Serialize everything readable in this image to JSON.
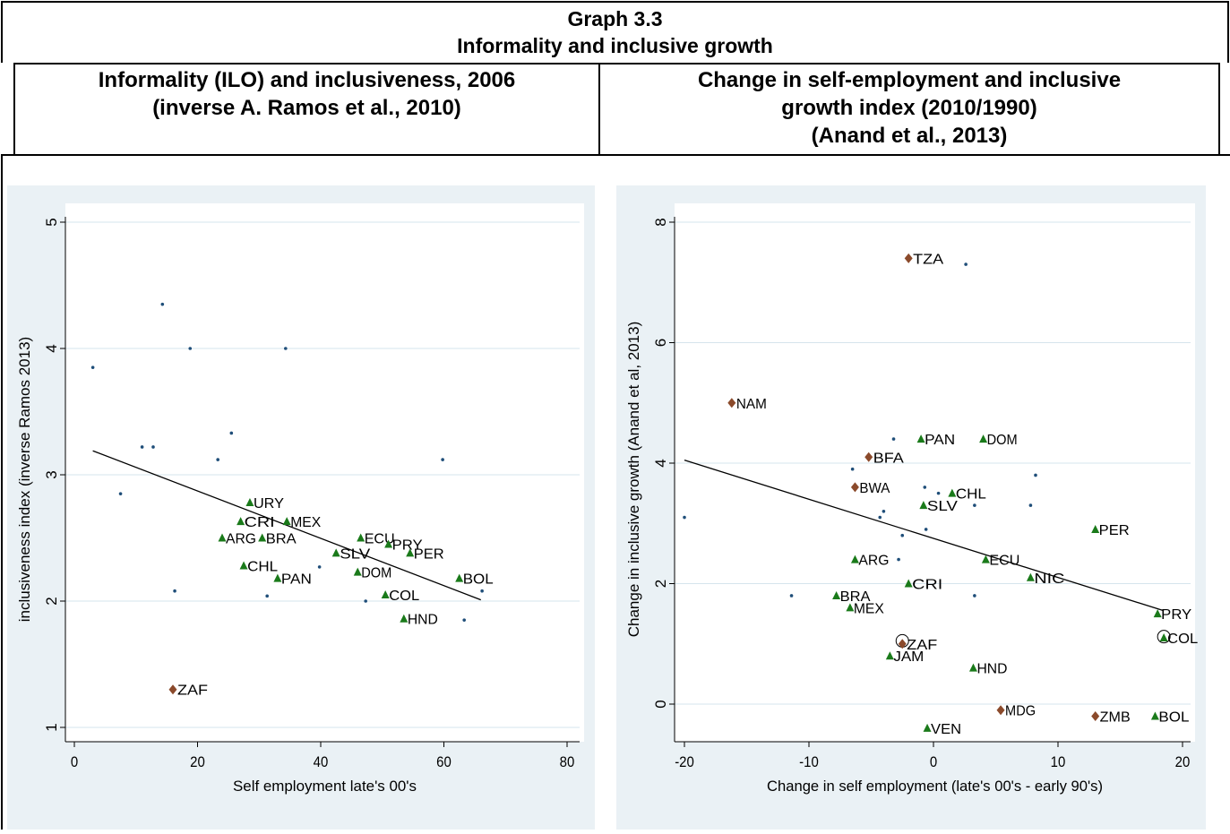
{
  "header": {
    "title_line1": "Graph 3.3",
    "title_line2": "Informality and inclusive growth",
    "left_line1": "Informality (ILO) and inclusiveness, 2006",
    "left_line2": "(inverse A. Ramos et al., 2010)",
    "right_line1": "Change in self-employment and inclusive",
    "right_line2": "growth index (2010/1990)",
    "right_line3": "(Anand et al., 2013)"
  },
  "colors": {
    "triangle": "#1a7a1a",
    "diamond": "#8b4a2b",
    "dot": "#1f4e79",
    "grid": "#d6e4ec",
    "panel_bg": "#eaf1f5"
  },
  "chart_data": [
    {
      "type": "scatter",
      "xlabel": "Self employment late's 00's",
      "ylabel": "inclusiveness index (inverse Ramos 2013)",
      "xlim": [
        0,
        80
      ],
      "ylim": [
        1,
        5
      ],
      "xticks": [
        0,
        20,
        40,
        60,
        80
      ],
      "yticks": [
        1,
        2,
        3,
        4,
        5
      ],
      "fit_line": [
        [
          3,
          3.19
        ],
        [
          66,
          2.01
        ]
      ],
      "triangles": [
        {
          "label": "URY",
          "x": 28.5,
          "y": 2.78
        },
        {
          "label": "CRI",
          "x": 27,
          "y": 2.63
        },
        {
          "label": "MEX",
          "x": 34.5,
          "y": 2.63
        },
        {
          "label": "ARG",
          "x": 24,
          "y": 2.5
        },
        {
          "label": "BRA",
          "x": 30.5,
          "y": 2.5
        },
        {
          "label": "ECU",
          "x": 46.5,
          "y": 2.5
        },
        {
          "label": "PRY",
          "x": 51,
          "y": 2.45
        },
        {
          "label": "SLV",
          "x": 42.5,
          "y": 2.38
        },
        {
          "label": "PER",
          "x": 54.5,
          "y": 2.38
        },
        {
          "label": "CHL",
          "x": 27.5,
          "y": 2.28
        },
        {
          "label": "DOM",
          "x": 46,
          "y": 2.23
        },
        {
          "label": "PAN",
          "x": 33,
          "y": 2.18
        },
        {
          "label": "BOL",
          "x": 62.5,
          "y": 2.18
        },
        {
          "label": "COL",
          "x": 50.5,
          "y": 2.05
        },
        {
          "label": "HND",
          "x": 53.5,
          "y": 1.86
        }
      ],
      "diamonds": [
        {
          "label": "ZAF",
          "x": 16,
          "y": 1.3
        }
      ],
      "dots": [
        {
          "x": 3,
          "y": 3.85
        },
        {
          "x": 7.5,
          "y": 2.85
        },
        {
          "x": 11,
          "y": 3.22
        },
        {
          "x": 12.8,
          "y": 3.22
        },
        {
          "x": 14.3,
          "y": 4.35
        },
        {
          "x": 16.3,
          "y": 2.08
        },
        {
          "x": 18.8,
          "y": 4.0
        },
        {
          "x": 23.3,
          "y": 3.12
        },
        {
          "x": 25.5,
          "y": 3.33
        },
        {
          "x": 31.3,
          "y": 2.04
        },
        {
          "x": 34.3,
          "y": 4.0
        },
        {
          "x": 39.8,
          "y": 2.27
        },
        {
          "x": 47.3,
          "y": 2.0
        },
        {
          "x": 59.8,
          "y": 3.12
        },
        {
          "x": 63.3,
          "y": 1.85
        },
        {
          "x": 66.2,
          "y": 2.08
        }
      ]
    },
    {
      "type": "scatter",
      "xlabel": "Change in self employment (late's 00's - early 90's)",
      "ylabel": "Change in inclusive growth (Anand et al, 2013)",
      "xlim": [
        -20,
        20
      ],
      "ylim": [
        0,
        8
      ],
      "xticks": [
        -20,
        -10,
        0,
        10,
        20
      ],
      "yticks": [
        0,
        2,
        4,
        6,
        8
      ],
      "fit_line": [
        [
          -20,
          4.05
        ],
        [
          18.5,
          1.55
        ]
      ],
      "triangles": [
        {
          "label": "PAN",
          "x": -1,
          "y": 4.4
        },
        {
          "label": "DOM",
          "x": 4,
          "y": 4.4
        },
        {
          "label": "CHL",
          "x": 1.5,
          "y": 3.5
        },
        {
          "label": "SLV",
          "x": -0.8,
          "y": 3.3
        },
        {
          "label": "PER",
          "x": 13,
          "y": 2.9
        },
        {
          "label": "ARG",
          "x": -6.3,
          "y": 2.4
        },
        {
          "label": "ECU",
          "x": 4.2,
          "y": 2.4
        },
        {
          "label": "NIC",
          "x": 7.8,
          "y": 2.1
        },
        {
          "label": "CRI",
          "x": -2,
          "y": 2.0
        },
        {
          "label": "BRA",
          "x": -7.8,
          "y": 1.8
        },
        {
          "label": "MEX",
          "x": -6.7,
          "y": 1.6
        },
        {
          "label": "PRY",
          "x": 18,
          "y": 1.5
        },
        {
          "label": "COL",
          "x": 18.5,
          "y": 1.1
        },
        {
          "label": "JAM",
          "x": -3.5,
          "y": 0.8
        },
        {
          "label": "HND",
          "x": 3.2,
          "y": 0.6
        },
        {
          "label": "BOL",
          "x": 17.8,
          "y": -0.2
        },
        {
          "label": "VEN",
          "x": -0.5,
          "y": -0.4
        }
      ],
      "diamonds": [
        {
          "label": "TZA",
          "x": -2,
          "y": 7.4
        },
        {
          "label": "NAM",
          "x": -16.2,
          "y": 5.0
        },
        {
          "label": "BFA",
          "x": -5.2,
          "y": 4.1
        },
        {
          "label": "BWA",
          "x": -6.3,
          "y": 3.6
        },
        {
          "label": "ZAF",
          "x": -2.5,
          "y": 1.0
        },
        {
          "label": "MDG",
          "x": 5.4,
          "y": -0.1
        },
        {
          "label": "ZMB",
          "x": 13,
          "y": -0.2
        }
      ],
      "circled": [
        {
          "x": -2.5,
          "y": 1.05
        },
        {
          "x": 18.5,
          "y": 1.12
        }
      ],
      "dots": [
        {
          "x": -20,
          "y": 3.1
        },
        {
          "x": -11.4,
          "y": 1.8
        },
        {
          "x": -6.5,
          "y": 3.9
        },
        {
          "x": -4.3,
          "y": 3.1
        },
        {
          "x": -4,
          "y": 3.2
        },
        {
          "x": -3.2,
          "y": 4.4
        },
        {
          "x": -2.8,
          "y": 2.4
        },
        {
          "x": -2.5,
          "y": 2.8
        },
        {
          "x": -0.7,
          "y": 3.6
        },
        {
          "x": -0.6,
          "y": 2.9
        },
        {
          "x": 0.4,
          "y": 3.5
        },
        {
          "x": 2.6,
          "y": 7.3
        },
        {
          "x": 3.3,
          "y": 3.3
        },
        {
          "x": 3.3,
          "y": 1.8
        },
        {
          "x": 7.8,
          "y": 3.3
        },
        {
          "x": 8.2,
          "y": 3.8
        }
      ]
    }
  ]
}
